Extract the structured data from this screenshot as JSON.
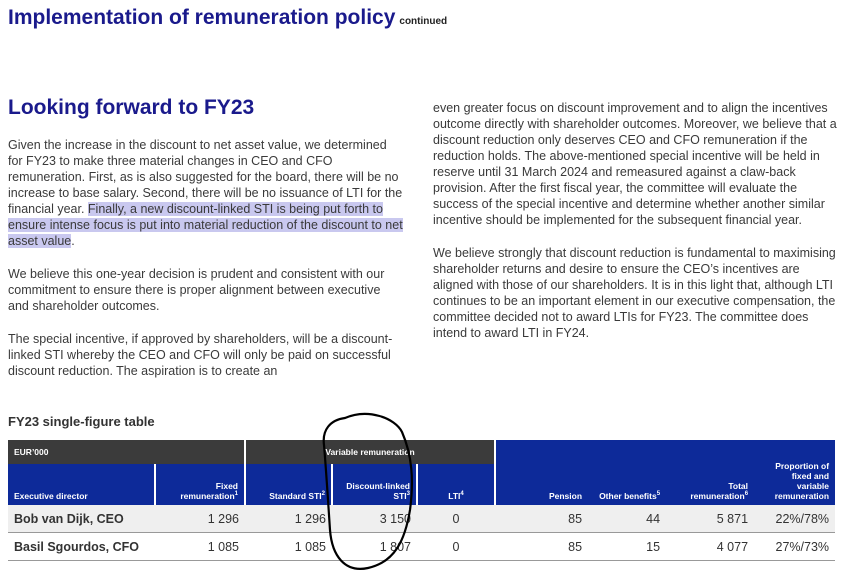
{
  "header": {
    "title": "Implementation of remuneration policy",
    "continued": "continued"
  },
  "section": {
    "title": "Looking forward to FY23"
  },
  "body": {
    "p1_plain": "Given the increase in the discount to net asset value, we determined for FY23 to make three material changes in CEO and CFO remuneration. First, as is also suggested for the board, there will be no increase to base salary. Second, there will be no issuance of LTI for the financial year. ",
    "p1_highlight": "Finally, a new discount-linked STI is being put forth to ensure intense focus is put into material reduction of the discount to net asset value",
    "p1_end": ".",
    "p2": "We believe this one-year decision is prudent and consistent with our commitment to ensure there is proper alignment between executive and shareholder outcomes.",
    "p3": "The special incentive, if approved by shareholders, will be a discount-linked STI whereby the CEO and CFO will only be paid on successful discount reduction. The aspiration is to create an",
    "p4": "even greater focus on discount improvement and to align the incentives outcome directly with shareholder outcomes. Moreover, we believe that a discount reduction only deserves CEO and CFO remuneration if the reduction holds. The above-mentioned special incentive will be held in reserve until 31 March 2024 and remeasured against a claw-back provision. After the first fiscal year, the committee will evaluate the success of the special incentive and determine whether another similar incentive should be implemented for the subsequent financial year.",
    "p5": "We believe strongly that discount reduction is fundamental to maximising shareholder returns and desire to ensure the CEO’s incentives are aligned with those of our shareholders. It is in this light that, although LTI continues to be an important element in our executive compensation, the committee decided not to award LTIs for FY23. The committee does intend to award LTI in FY24."
  },
  "table": {
    "title": "FY23 single-figure table",
    "currency": "EUR’000",
    "variable_group": "Variable remuneration",
    "headers": {
      "executive": "Executive director",
      "fixed": "Fixed remuneration",
      "fixed_note": "1",
      "standard_sti": "Standard STI",
      "standard_sti_note": "2",
      "discount_sti": "Discount-linked STI",
      "discount_sti_note": "3",
      "lti": "LTI",
      "lti_note": "4",
      "pension": "Pension",
      "other": "Other benefits",
      "other_note": "5",
      "total": "Total remuneration",
      "total_note": "6",
      "proportion": "Proportion of fixed and variable remuneration"
    },
    "rows": [
      {
        "name": "Bob van Dijk, CEO",
        "fixed": "1 296",
        "standard_sti": "1 296",
        "discount_sti": "3 150",
        "lti": "0",
        "pension": "85",
        "other": "44",
        "total": "5 871",
        "proportion": "22%/78%"
      },
      {
        "name": "Basil Sgourdos, CFO",
        "fixed": "1 085",
        "standard_sti": "1 085",
        "discount_sti": "1 807",
        "lti": "0",
        "pension": "85",
        "other": "15",
        "total": "4 077",
        "proportion": "27%/73%"
      }
    ]
  },
  "colors": {
    "title_blue": "#1a1a8c",
    "header_dark": "#3b3b3b",
    "header_blue": "#0d2a99",
    "highlight": "#c9c8ef"
  }
}
